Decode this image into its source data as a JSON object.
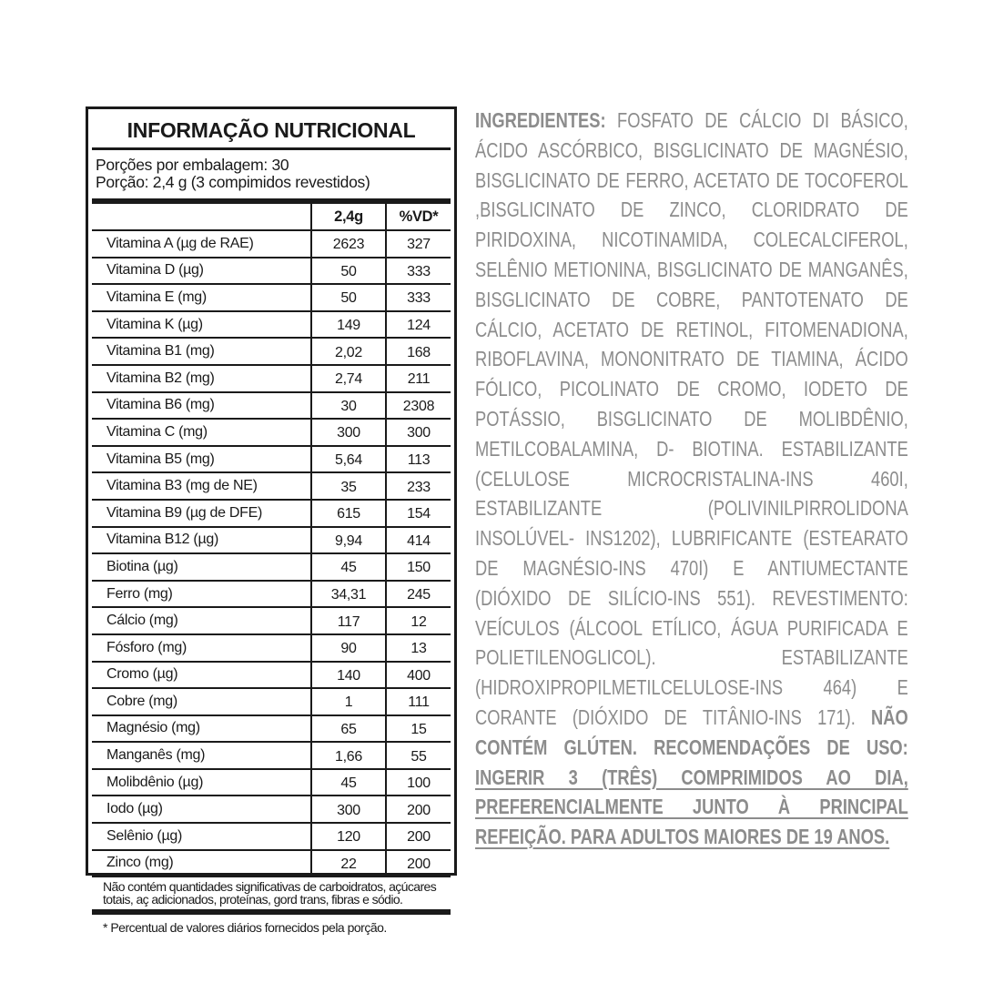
{
  "label": {
    "title": "INFORMAÇÃO NUTRICIONAL",
    "servings_per_package": "Porções por embalagem: 30",
    "serving_size": "Porção: 2,4 g (3 compimidos revestidos)",
    "columns": [
      "",
      "2,4g",
      "%VD*"
    ],
    "rows": [
      [
        "Vitamina A (µg de RAE)",
        "2623",
        "327"
      ],
      [
        "Vitamina D (µg)",
        "50",
        "333"
      ],
      [
        "Vitamina E (mg)",
        "50",
        "333"
      ],
      [
        "Vitamina K (µg)",
        "149",
        "124"
      ],
      [
        "Vitamina B1 (mg)",
        "2,02",
        "168"
      ],
      [
        "Vitamina B2 (mg)",
        "2,74",
        "211"
      ],
      [
        "Vitamina B6 (mg)",
        "30",
        "2308"
      ],
      [
        "Vitamina C (mg)",
        "300",
        "300"
      ],
      [
        "Vitamina B5 (mg)",
        "5,64",
        "113"
      ],
      [
        "Vitamina B3 (mg de NE)",
        "35",
        "233"
      ],
      [
        "Vitamina B9 (µg de DFE)",
        "615",
        "154"
      ],
      [
        "Vitamina B12 (µg)",
        "9,94",
        "414"
      ],
      [
        "Biotina (µg)",
        "45",
        "150"
      ],
      [
        "Ferro (mg)",
        "34,31",
        "245"
      ],
      [
        "Cálcio (mg)",
        "117",
        "12"
      ],
      [
        "Fósforo (mg)",
        "90",
        "13"
      ],
      [
        "Cromo (µg)",
        "140",
        "400"
      ],
      [
        "Cobre (mg)",
        "1",
        "111"
      ],
      [
        "Magnésio (mg)",
        "65",
        "15"
      ],
      [
        "Manganês (mg)",
        "1,66",
        "55"
      ],
      [
        "Molibdênio (µg)",
        "45",
        "100"
      ],
      [
        "Iodo (µg)",
        "300",
        "200"
      ],
      [
        "Selênio (µg)",
        "120",
        "200"
      ],
      [
        "Zinco (mg)",
        "22",
        "200"
      ]
    ],
    "note": "Não contém quantidades significativas de carboidratos, açúcares totais, aç adicionados, proteínas, gord trans, fibras e sódio.",
    "footnote": "* Percentual de valores diários fornecidos pela porção."
  },
  "ingredients": {
    "heading": "INGREDIENTES:",
    "text": " FOSFATO DE CÁLCIO DI BÁSICO, ÁCIDO ASCÓRBICO, BISGLICINATO DE MAGNÉSIO, BISGLICINATO DE FERRO, ACETATO DE TOCOFEROL ,BISGLICINATO DE ZINCO, CLORIDRATO DE PIRIDOXINA, NICOTINAMIDA, COLECALCIFEROL, SELÊNIO METIONINA, BISGLICINATO DE MANGANÊS, BISGLICINATO DE COBRE, PANTOTENATO DE CÁLCIO, ACETATO DE RETINOL, FITOMENADIONA, RIBOFLAVINA, MONONITRATO DE TIAMINA, ÁCIDO FÓLICO, PICOLINATO DE CROMO, IODETO DE POTÁSSIO, BISGLICINATO DE MOLIBDÊNIO, METILCOBALAMINA, D- BIOTINA. ESTABILIZANTE (CELULOSE MICROCRISTALINA-INS 460I, ESTABILIZANTE (POLIVINILPIRROLIDONA INSOLÚVEL- INS1202), LUBRIFICANTE (ESTEARATO DE MAGNÉSIO-INS 470I) E ANTIUMECTANTE (DIÓXIDO DE SILÍCIO-INS 551). REVESTIMENTO: VEÍCULOS (ÁLCOOL ETÍLICO, ÁGUA PURIFICADA E POLIETILENOGLICOL). ESTABILIZANTE (HIDROXIPROPILMETILCELULOSE-INS 464) E CORANTE (DIÓXIDO DE TITÂNIO-INS 171). ",
    "gluten": "NÃO CONTÉM GLÚTEN. RECOMENDAÇÕES DE USO: ",
    "usage": "INGERIR 3 (TRÊS) COMPRIMIDOS AO DIA, PREFERENCIALMENTE JUNTO À PRINCIPAL REFEIÇÃO. PARA ADULTOS MAIORES DE 19 ANOS."
  },
  "colors": {
    "label_text": "#1a1a1a",
    "ingredients_text": "#8c8c8c"
  }
}
